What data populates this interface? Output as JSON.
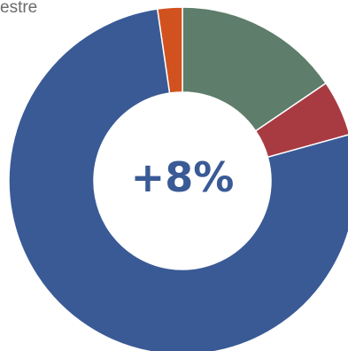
{
  "header": {
    "corner_label": "estre"
  },
  "chart_data": {
    "type": "pie",
    "donut": true,
    "center_label": "+8%",
    "slices": [
      {
        "value": 15.5,
        "color": "#5e7d6a"
      },
      {
        "value": 5.2,
        "color": "#a83b42"
      },
      {
        "value": 77.0,
        "color": "#3a5a96"
      },
      {
        "value": 2.3,
        "color": "#d2521f"
      }
    ],
    "colors": {
      "center_label": "#3a5a96",
      "separator": "#ffffff"
    }
  }
}
